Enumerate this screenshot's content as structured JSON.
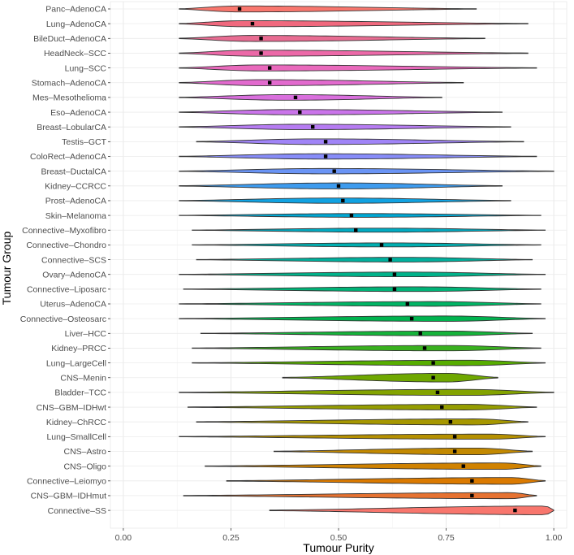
{
  "chart_data": {
    "type": "violin",
    "title": "",
    "xlabel": "Tumour Purity",
    "ylabel": "Tumour Group",
    "xlim": [
      -0.03,
      1.03
    ],
    "xticks": [
      0.0,
      0.25,
      0.5,
      0.75,
      1.0
    ],
    "xtick_labels": [
      "0.00",
      "0.25",
      "0.50",
      "0.75",
      "1.00"
    ],
    "grid": true,
    "groups": [
      {
        "name": "Panc–AdenoCA",
        "min": 0.13,
        "max": 0.82,
        "mean": 0.27,
        "peak": 0.27,
        "half_width": 0.45,
        "color": "#F8766D"
      },
      {
        "name": "Lung–AdenoCA",
        "min": 0.13,
        "max": 0.94,
        "mean": 0.3,
        "peak": 0.28,
        "half_width": 0.45,
        "color": "#F0697E"
      },
      {
        "name": "BileDuct–AdenoCA",
        "min": 0.13,
        "max": 0.84,
        "mean": 0.32,
        "peak": 0.3,
        "half_width": 0.45,
        "color": "#E86C92"
      },
      {
        "name": "HeadNeck–SCC",
        "min": 0.13,
        "max": 0.94,
        "mean": 0.32,
        "peak": 0.3,
        "half_width": 0.45,
        "color": "#EC69A8"
      },
      {
        "name": "Lung–SCC",
        "min": 0.13,
        "max": 0.96,
        "mean": 0.34,
        "peak": 0.32,
        "half_width": 0.45,
        "color": "#E969BC"
      },
      {
        "name": "Stomach–AdenoCA",
        "min": 0.13,
        "max": 0.79,
        "mean": 0.34,
        "peak": 0.32,
        "half_width": 0.45,
        "color": "#E26ACE"
      },
      {
        "name": "Mes–Mesothelioma",
        "min": 0.13,
        "max": 0.74,
        "mean": 0.4,
        "peak": 0.38,
        "half_width": 0.42,
        "color": "#D96FDD"
      },
      {
        "name": "Eso–AdenoCA",
        "min": 0.13,
        "max": 0.88,
        "mean": 0.41,
        "peak": 0.4,
        "half_width": 0.4,
        "color": "#CA74EA"
      },
      {
        "name": "Breast–LobularCA",
        "min": 0.13,
        "max": 0.9,
        "mean": 0.44,
        "peak": 0.42,
        "half_width": 0.4,
        "color": "#B67CF2"
      },
      {
        "name": "Testis–GCT",
        "min": 0.17,
        "max": 0.93,
        "mean": 0.47,
        "peak": 0.45,
        "half_width": 0.42,
        "color": "#A084F7"
      },
      {
        "name": "ColoRect–AdenoCA",
        "min": 0.13,
        "max": 0.96,
        "mean": 0.47,
        "peak": 0.46,
        "half_width": 0.4,
        "color": "#878CF9"
      },
      {
        "name": "Breast–DuctalCA",
        "min": 0.13,
        "max": 1.0,
        "mean": 0.49,
        "peak": 0.47,
        "half_width": 0.4,
        "color": "#6A94F5"
      },
      {
        "name": "Kidney–CCRCC",
        "min": 0.13,
        "max": 0.88,
        "mean": 0.5,
        "peak": 0.5,
        "half_width": 0.45,
        "color": "#3D9BEE"
      },
      {
        "name": "Prost–AdenoCA",
        "min": 0.13,
        "max": 0.9,
        "mean": 0.51,
        "peak": 0.5,
        "half_width": 0.4,
        "color": "#10A2E2"
      },
      {
        "name": "Skin–Melanoma",
        "min": 0.13,
        "max": 0.97,
        "mean": 0.53,
        "peak": 0.55,
        "half_width": 0.28,
        "color": "#00A7D3"
      },
      {
        "name": "Connective–Myxofibro",
        "min": 0.16,
        "max": 0.98,
        "mean": 0.54,
        "peak": 0.6,
        "half_width": 0.3,
        "color": "#00ABC2"
      },
      {
        "name": "Connective–Chondro",
        "min": 0.16,
        "max": 0.97,
        "mean": 0.6,
        "peak": 0.62,
        "half_width": 0.3,
        "color": "#00AEB0"
      },
      {
        "name": "Connective–SCS",
        "min": 0.17,
        "max": 0.95,
        "mean": 0.62,
        "peak": 0.65,
        "half_width": 0.35,
        "color": "#00B09D"
      },
      {
        "name": "Ovary–AdenoCA",
        "min": 0.13,
        "max": 0.98,
        "mean": 0.63,
        "peak": 0.66,
        "half_width": 0.35,
        "color": "#00B28A"
      },
      {
        "name": "Connective–Liposarc",
        "min": 0.14,
        "max": 0.97,
        "mean": 0.63,
        "peak": 0.68,
        "half_width": 0.35,
        "color": "#00B377"
      },
      {
        "name": "Uterus–AdenoCA",
        "min": 0.13,
        "max": 0.97,
        "mean": 0.66,
        "peak": 0.72,
        "half_width": 0.35,
        "color": "#00B464"
      },
      {
        "name": "Connective–Osteosarc",
        "min": 0.13,
        "max": 0.98,
        "mean": 0.67,
        "peak": 0.75,
        "half_width": 0.4,
        "color": "#00B44F"
      },
      {
        "name": "Liver–HCC",
        "min": 0.18,
        "max": 0.95,
        "mean": 0.69,
        "peak": 0.75,
        "half_width": 0.35,
        "color": "#15B33A"
      },
      {
        "name": "Kidney–PRCC",
        "min": 0.16,
        "max": 0.97,
        "mean": 0.7,
        "peak": 0.75,
        "half_width": 0.4,
        "color": "#39B11E"
      },
      {
        "name": "Lung–LargeCell",
        "min": 0.16,
        "max": 0.98,
        "mean": 0.72,
        "peak": 0.8,
        "half_width": 0.4,
        "color": "#57AD00"
      },
      {
        "name": "CNS–Menin",
        "min": 0.37,
        "max": 0.87,
        "mean": 0.72,
        "peak": 0.75,
        "half_width": 0.65,
        "color": "#6FA800"
      },
      {
        "name": "Bladder–TCC",
        "min": 0.13,
        "max": 1.0,
        "mean": 0.73,
        "peak": 0.8,
        "half_width": 0.45,
        "color": "#83A300"
      },
      {
        "name": "CNS–GBM–IDHwt",
        "min": 0.15,
        "max": 0.96,
        "mean": 0.74,
        "peak": 0.8,
        "half_width": 0.42,
        "color": "#959D00"
      },
      {
        "name": "Kidney–ChRCC",
        "min": 0.17,
        "max": 0.94,
        "mean": 0.76,
        "peak": 0.82,
        "half_width": 0.45,
        "color": "#A69700"
      },
      {
        "name": "Lung–SmallCell",
        "min": 0.13,
        "max": 0.98,
        "mean": 0.77,
        "peak": 0.85,
        "half_width": 0.38,
        "color": "#B59000"
      },
      {
        "name": "CNS–Astro",
        "min": 0.35,
        "max": 0.95,
        "mean": 0.77,
        "peak": 0.82,
        "half_width": 0.5,
        "color": "#C38900"
      },
      {
        "name": "CNS–Oligo",
        "min": 0.19,
        "max": 0.97,
        "mean": 0.79,
        "peak": 0.88,
        "half_width": 0.48,
        "color": "#D08200"
      },
      {
        "name": "Connective–Leiomyo",
        "min": 0.24,
        "max": 0.98,
        "mean": 0.81,
        "peak": 0.9,
        "half_width": 0.5,
        "color": "#DB7A00"
      },
      {
        "name": "CNS–GBM–IDHmut",
        "min": 0.14,
        "max": 0.96,
        "mean": 0.81,
        "peak": 0.9,
        "half_width": 0.45,
        "color": "#E67231"
      },
      {
        "name": "Connective–SS",
        "min": 0.34,
        "max": 1.0,
        "mean": 0.91,
        "peak": 0.98,
        "half_width": 0.65,
        "color": "#F8766D"
      }
    ]
  }
}
